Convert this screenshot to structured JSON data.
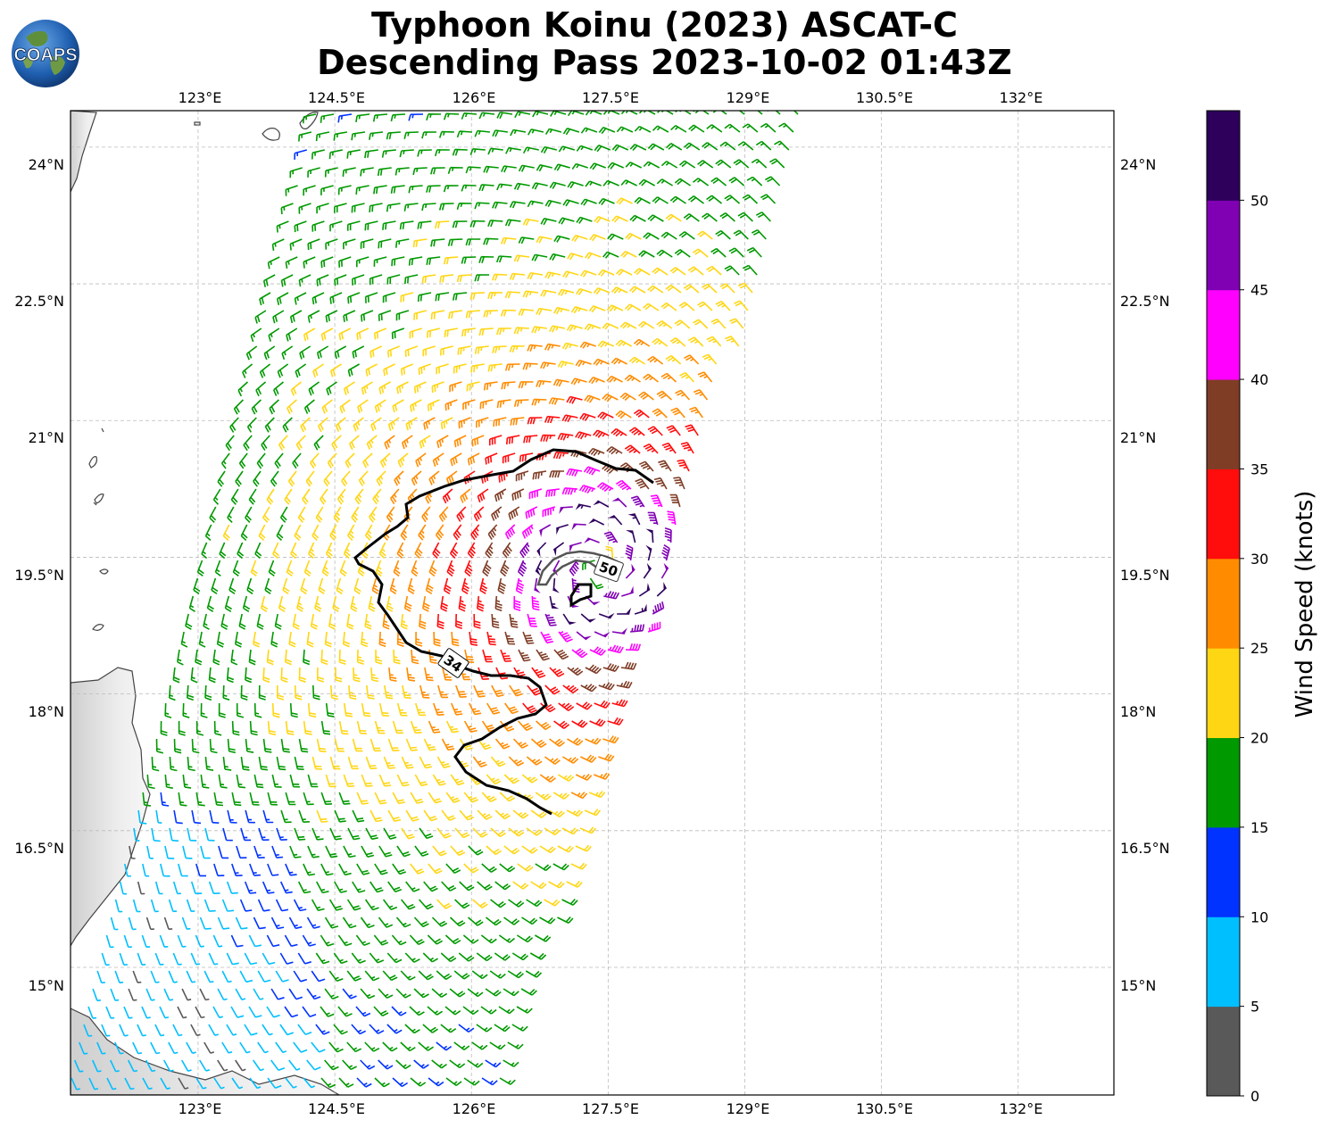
{
  "title_line1": "Typhoon Koinu (2023) ASCAT-C",
  "title_line2": "Descending Pass 2023-10-02 01:43Z",
  "logo_text": "COAPS",
  "lon_ticks": [
    "123°E",
    "124.5°E",
    "126°E",
    "127.5°E",
    "129°E",
    "130.5°E",
    "132°E"
  ],
  "lat_ticks": [
    "24°N",
    "22.5°N",
    "21°N",
    "19.5°N",
    "18°N",
    "16.5°N",
    "15°N"
  ],
  "contour_labels": [
    "34",
    "50"
  ],
  "colorbar": {
    "label": "Wind Speed (knots)",
    "ticks": [
      "0",
      "5",
      "10",
      "15",
      "20",
      "25",
      "30",
      "35",
      "40",
      "45",
      "50"
    ],
    "colors": [
      "#595959",
      "#00bfff",
      "#0033ff",
      "#009900",
      "#ffd614",
      "#ff8c00",
      "#ff0d0d",
      "#7f3d26",
      "#ff00ff",
      "#8000b3",
      "#2e005c"
    ]
  },
  "map": {
    "lon_range": [
      121.6,
      133.05
    ],
    "lat_range": [
      13.6,
      24.4
    ],
    "storm_center": {
      "lon": 127.4,
      "lat": 19.4
    }
  }
}
